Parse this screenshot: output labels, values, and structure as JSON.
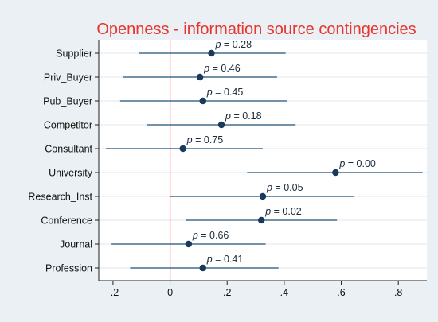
{
  "chart_data": {
    "type": "scatter",
    "subtype": "coefficient-plot-with-confidence-intervals",
    "title": "Openness - information source contingencies",
    "xlabel": "",
    "ylabel": "",
    "xlim": [
      -0.25,
      0.9
    ],
    "x_ticks": [
      -0.2,
      0,
      0.2,
      0.4,
      0.6,
      0.8
    ],
    "x_tick_labels": [
      "-.2",
      "0",
      ".2",
      ".4",
      ".6",
      ".8"
    ],
    "reference_line": {
      "x": 0,
      "color": "#e8352f"
    },
    "grid": {
      "horizontal": true,
      "vertical": false
    },
    "categories": [
      "Supplier",
      "Priv_Buyer",
      "Pub_Buyer",
      "Competitor",
      "Consultant",
      "University",
      "Research_Inst",
      "Conference",
      "Journal",
      "Profession"
    ],
    "estimates": [
      0.145,
      0.105,
      0.115,
      0.18,
      0.045,
      0.58,
      0.325,
      0.32,
      0.065,
      0.115
    ],
    "ci_low": [
      -0.11,
      -0.165,
      -0.175,
      -0.08,
      -0.225,
      0.27,
      0.0,
      0.055,
      -0.205,
      -0.14
    ],
    "ci_high": [
      0.405,
      0.375,
      0.41,
      0.44,
      0.325,
      0.885,
      0.645,
      0.585,
      0.335,
      0.38
    ],
    "p_labels": [
      "p = 0.28",
      "p = 0.46",
      "p = 0.45",
      "p = 0.18",
      "p = 0.75",
      "p = 0.00",
      "p = 0.05",
      "p = 0.02",
      "p = 0.66",
      "p = 0.41"
    ],
    "colors": {
      "marker": "#1a3a5c",
      "ci_line": "#1f4f78",
      "grid": "#dfe6ec",
      "title": "#e8352f",
      "background": "#eaf0f3"
    }
  }
}
